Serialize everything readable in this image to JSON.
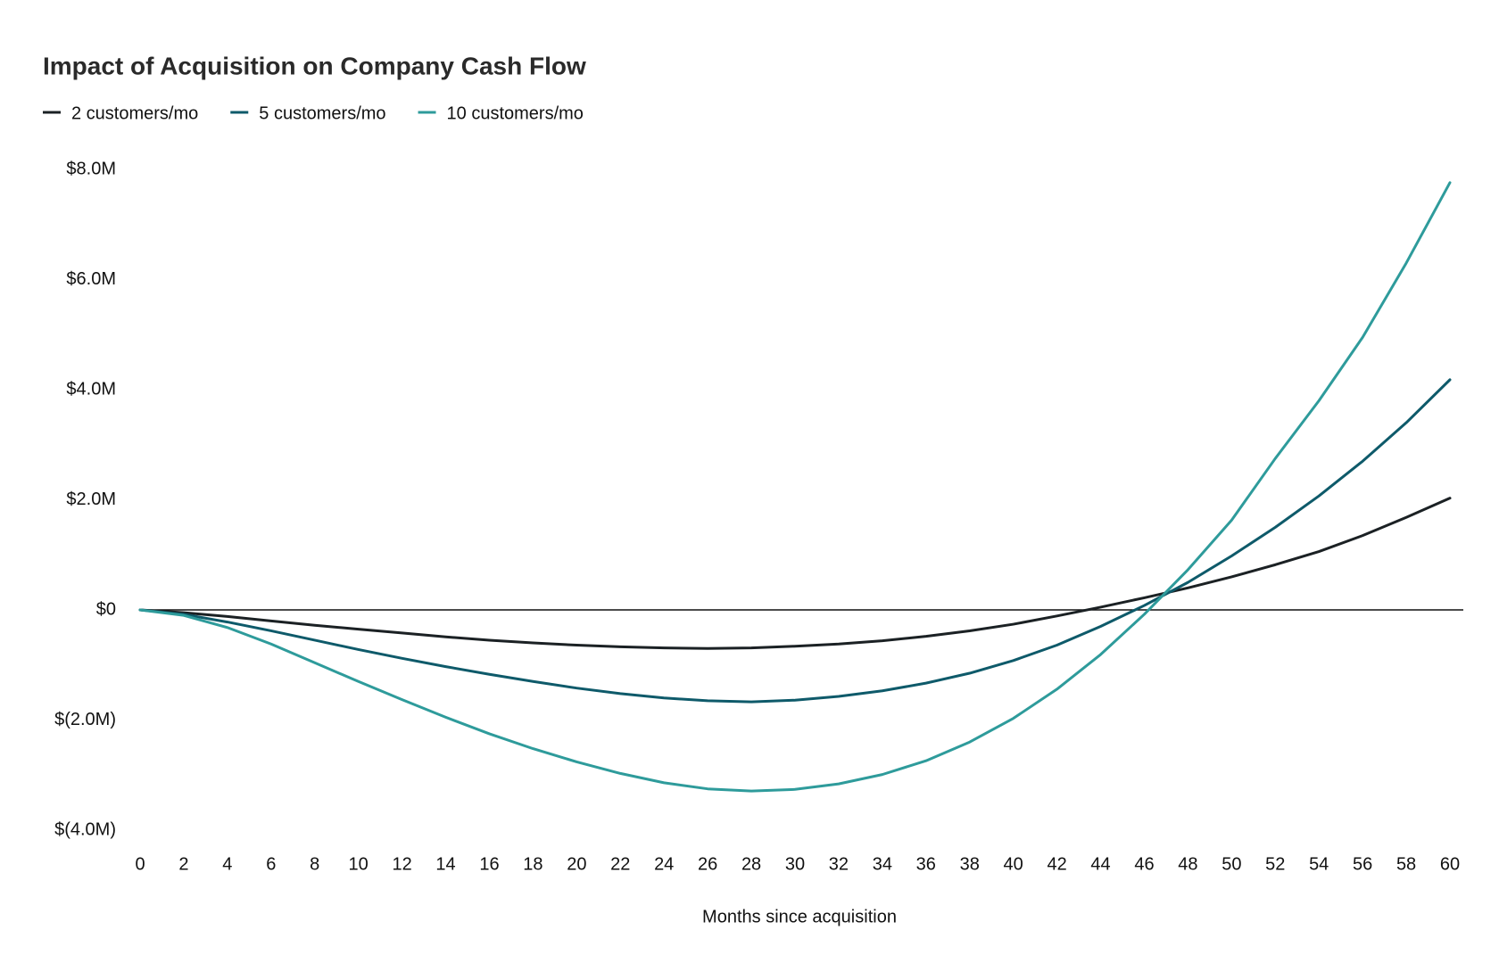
{
  "chart_data": {
    "type": "line",
    "title": "Impact of Acquisition on Company Cash Flow",
    "x_label": "Months since acquisition",
    "x": [
      0,
      2,
      4,
      6,
      8,
      10,
      12,
      14,
      16,
      18,
      20,
      22,
      24,
      26,
      28,
      30,
      32,
      34,
      36,
      38,
      40,
      42,
      44,
      46,
      48,
      50,
      52,
      54,
      56,
      58,
      60
    ],
    "xlim": [
      0,
      60
    ],
    "xticks": [
      0,
      2,
      4,
      6,
      8,
      10,
      12,
      14,
      16,
      18,
      20,
      22,
      24,
      26,
      28,
      30,
      32,
      34,
      36,
      38,
      40,
      42,
      44,
      46,
      48,
      50,
      52,
      54,
      56,
      58,
      60
    ],
    "ylim": [
      -4,
      8
    ],
    "yticks": [
      {
        "value": -4,
        "label": "$(4.0M)"
      },
      {
        "value": -2,
        "label": "$(2.0M)"
      },
      {
        "value": 0,
        "label": "$0"
      },
      {
        "value": 2,
        "label": "$2.0M"
      },
      {
        "value": 4,
        "label": "$4.0M"
      },
      {
        "value": 6,
        "label": "$6.0M"
      },
      {
        "value": 8,
        "label": "$8.0M"
      }
    ],
    "grid": false,
    "zero_line": true,
    "legend": "top-left",
    "series": [
      {
        "name": "2 customers/mo",
        "color": "#1b2124",
        "values": [
          0,
          -0.05,
          -0.12,
          -0.2,
          -0.28,
          -0.35,
          -0.42,
          -0.49,
          -0.55,
          -0.6,
          -0.64,
          -0.67,
          -0.69,
          -0.7,
          -0.69,
          -0.66,
          -0.62,
          -0.56,
          -0.48,
          -0.38,
          -0.26,
          -0.11,
          0.05,
          0.22,
          0.4,
          0.6,
          0.82,
          1.06,
          1.35,
          1.68,
          2.03
        ]
      },
      {
        "name": "5 customers/mo",
        "color": "#0e5a6a",
        "values": [
          0,
          -0.08,
          -0.22,
          -0.38,
          -0.55,
          -0.72,
          -0.88,
          -1.03,
          -1.17,
          -1.3,
          -1.42,
          -1.52,
          -1.6,
          -1.65,
          -1.67,
          -1.64,
          -1.57,
          -1.47,
          -1.33,
          -1.15,
          -0.92,
          -0.64,
          -0.3,
          0.08,
          0.5,
          0.98,
          1.5,
          2.07,
          2.7,
          3.4,
          4.18
        ]
      },
      {
        "name": "10 customers/mo",
        "color": "#2e9b9b",
        "values": [
          0,
          -0.1,
          -0.32,
          -0.62,
          -0.96,
          -1.3,
          -1.63,
          -1.95,
          -2.25,
          -2.52,
          -2.76,
          -2.97,
          -3.14,
          -3.25,
          -3.29,
          -3.26,
          -3.16,
          -2.99,
          -2.74,
          -2.4,
          -1.97,
          -1.44,
          -0.81,
          -0.08,
          0.73,
          1.63,
          2.75,
          3.8,
          4.95,
          6.3,
          7.76
        ]
      }
    ]
  }
}
